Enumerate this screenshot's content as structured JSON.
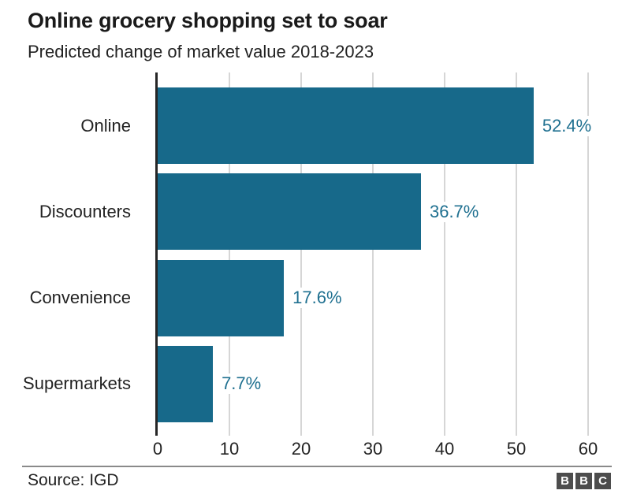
{
  "chart_data": {
    "type": "bar",
    "orientation": "horizontal",
    "title": "Online grocery shopping set to soar",
    "subtitle": "Predicted change of market value 2018-2023",
    "categories": [
      "Online",
      "Discounters",
      "Convenience",
      "Supermarkets"
    ],
    "values": [
      52.4,
      36.7,
      17.6,
      7.7
    ],
    "value_labels": [
      "52.4%",
      "36.7%",
      "17.6%",
      "7.7%"
    ],
    "x_ticks": [
      0,
      10,
      20,
      30,
      40,
      50,
      60
    ],
    "xlim": [
      0,
      60
    ],
    "grid": "vertical",
    "legend": "none",
    "bar_color": "#17698a",
    "value_label_color": "#1f7090",
    "gridline_color": "#d6d6d6",
    "axis_color": "#262626"
  },
  "footer": {
    "source": "Source: IGD",
    "logo_letters": [
      "B",
      "B",
      "C"
    ]
  }
}
